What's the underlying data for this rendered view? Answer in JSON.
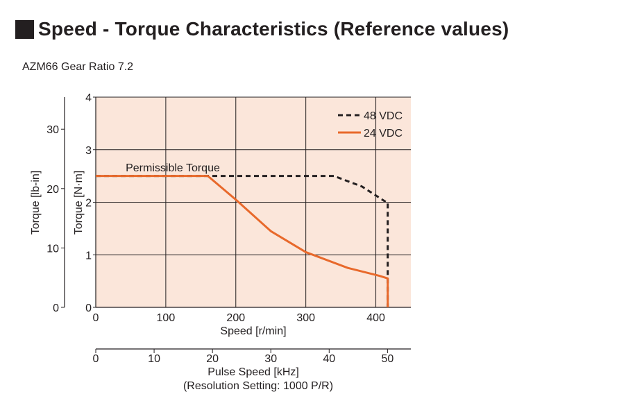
{
  "page": {
    "title": "Speed - Torque Characteristics (Reference values)",
    "subtitle": "AZM66  Gear Ratio 7.2"
  },
  "colors": {
    "plot_background": "#fbe6da",
    "grid": "#231f20",
    "series_48vdc": "#231f20",
    "series_24vdc": "#e8692b",
    "title_square": "#231f20"
  },
  "chart_data": {
    "type": "line",
    "xlabel": "Speed [r/min]",
    "ylabel": "Torque [N·m]",
    "ylabel_secondary": "Torque [lb-in]",
    "xlabel_secondary": "Pulse Speed [kHz]",
    "xlabel_secondary_note": "(Resolution Setting: 1000 P/R)",
    "xlim": [
      0,
      450
    ],
    "ylim": [
      0,
      4
    ],
    "ylim_secondary": [
      0,
      35.4
    ],
    "xlim_secondary": [
      0,
      54
    ],
    "x_ticks": [
      "0",
      "100",
      "200",
      "300",
      "400"
    ],
    "y_ticks": [
      "0",
      "1",
      "2",
      "3",
      "4"
    ],
    "y_ticks_secondary": [
      "0",
      "10",
      "20",
      "30"
    ],
    "x_ticks_secondary": [
      "0",
      "10",
      "20",
      "30",
      "40",
      "50"
    ],
    "grid": true,
    "legend_position": "top-right",
    "annotation": "Permissible Torque",
    "series": [
      {
        "name": "48 VDC",
        "style": "dashed",
        "x": [
          0,
          340,
          380,
          415,
          417,
          417
        ],
        "y": [
          2.5,
          2.5,
          2.3,
          2.0,
          2.0,
          0
        ]
      },
      {
        "name": "24 VDC",
        "style": "solid",
        "x": [
          0,
          160,
          200,
          250,
          300,
          360,
          405,
          417,
          417
        ],
        "y": [
          2.5,
          2.5,
          2.05,
          1.45,
          1.05,
          0.75,
          0.6,
          0.55,
          0
        ]
      }
    ]
  }
}
